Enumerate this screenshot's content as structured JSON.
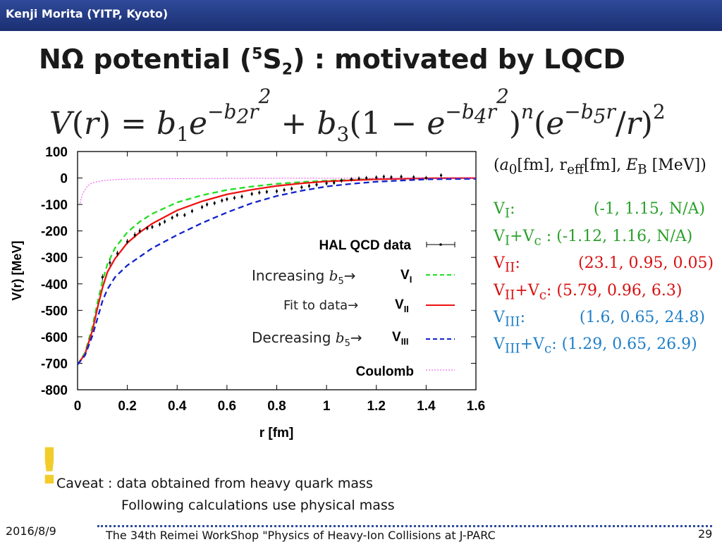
{
  "header": {
    "author": "Kenji Morita (YITP, Kyoto)"
  },
  "slide": {
    "title_pre": "NΩ potential (",
    "title_sup": "5",
    "title_s": "S",
    "title_sub": "2",
    "title_post": ") : motivated by LQCD"
  },
  "formula": {
    "lhs": "V",
    "rhs_text": "V(r) = b1 e^(−b2 r^2) + b3 (1 − e^(−b4 r^2))^n (e^(−b5 r)/r)^2"
  },
  "params": {
    "header": "(a0[fm], reff[fm], EB [MeV])",
    "header_a": "a",
    "header_a_sub": "0",
    "header_mid": "[fm], r",
    "header_r_sub": "eff",
    "header_post": "[fm], ",
    "header_E": "E",
    "header_E_sub": "B",
    "header_end": " [MeV])",
    "rows": [
      {
        "label": "V",
        "sub": "I",
        "suffix": ":",
        "value": "(-1, 1.15, N/A)",
        "color": "#2aa02a"
      },
      {
        "label": "V",
        "sub": "I",
        "suffix": "+V",
        "sub2": "c",
        "suffix2": " :",
        "value": "(-1.12, 1.16, N/A)",
        "color": "#2aa02a"
      },
      {
        "label": "V",
        "sub": "II",
        "suffix": ":",
        "value": "(23.1, 0.95, 0.05)",
        "color": "#d81010"
      },
      {
        "label": "V",
        "sub": "II",
        "suffix": "+V",
        "sub2": "c",
        "suffix2": ":",
        "value": "(5.79, 0.96, 6.3)",
        "color": "#d81010"
      },
      {
        "label": "V",
        "sub": "III",
        "suffix": ":",
        "value": "(1.6, 0.65, 24.8)",
        "color": "#1f7fc8"
      },
      {
        "label": "V",
        "sub": "III",
        "suffix": "+V",
        "sub2": "c",
        "suffix2": ":",
        "value": "(1.29, 0.65, 26.9)",
        "color": "#1f7fc8"
      }
    ]
  },
  "legend": {
    "hal": "HAL QCD data",
    "inc": "Increasing ",
    "b5": "b",
    "b5_sub": "5",
    "arrow": "→",
    "fit": "Fit to data→",
    "dec": "Decreasing ",
    "v1": "V",
    "v1_sub": "I",
    "v2": "V",
    "v2_sub": "II",
    "v3": "V",
    "v3_sub": "III",
    "coulomb": "Coulomb"
  },
  "caveat": {
    "mark": "!",
    "line1": "Caveat : data obtained from heavy quark mass",
    "line2": "Following calculations use physical mass"
  },
  "footer": {
    "date": "2016/8/9",
    "title": "The 34th Reimei WorkShop \"Physics of Heavy-Ion Collisions at J-PARC",
    "page": "29"
  },
  "chart_data": {
    "type": "line",
    "xlabel": "r [fm]",
    "ylabel": "V(r) [MeV]",
    "xlim": [
      0,
      1.6
    ],
    "ylim": [
      -800,
      100
    ],
    "xticks": [
      "0",
      "0.2",
      "0.4",
      "0.6",
      "0.8",
      "1",
      "1.2",
      "1.4",
      "1.6"
    ],
    "yticks": [
      "100",
      "0",
      "-100",
      "-200",
      "-300",
      "-400",
      "-500",
      "-600",
      "-700",
      "-800"
    ],
    "series": [
      {
        "name": "V_I",
        "color": "#22dd22",
        "dash": "8,5",
        "x": [
          0,
          0.03,
          0.06,
          0.08,
          0.1,
          0.12,
          0.15,
          0.2,
          0.25,
          0.3,
          0.4,
          0.5,
          0.6,
          0.7,
          0.8,
          0.9,
          1.0,
          1.2,
          1.4,
          1.6
        ],
        "y": [
          -705,
          -660,
          -560,
          -470,
          -390,
          -325,
          -265,
          -205,
          -165,
          -135,
          -92,
          -65,
          -45,
          -32,
          -22,
          -15,
          -10,
          -4,
          -1,
          0
        ]
      },
      {
        "name": "V_II",
        "color": "#ee1111",
        "dash": "",
        "x": [
          0,
          0.03,
          0.06,
          0.08,
          0.1,
          0.12,
          0.15,
          0.2,
          0.25,
          0.3,
          0.4,
          0.5,
          0.6,
          0.7,
          0.8,
          0.9,
          1.0,
          1.2,
          1.4,
          1.6
        ],
        "y": [
          -705,
          -665,
          -575,
          -490,
          -415,
          -355,
          -305,
          -245,
          -205,
          -172,
          -122,
          -88,
          -62,
          -44,
          -30,
          -20,
          -13,
          -5,
          -1,
          0
        ]
      },
      {
        "name": "V_III",
        "color": "#1122cc",
        "dash": "8,5",
        "x": [
          0,
          0.03,
          0.06,
          0.08,
          0.1,
          0.12,
          0.15,
          0.2,
          0.3,
          0.4,
          0.5,
          0.6,
          0.7,
          0.8,
          0.9,
          1.0,
          1.1,
          1.2,
          1.4,
          1.6
        ],
        "y": [
          -705,
          -670,
          -595,
          -530,
          -465,
          -420,
          -375,
          -330,
          -265,
          -215,
          -170,
          -130,
          -95,
          -68,
          -48,
          -32,
          -22,
          -14,
          -5,
          -3
        ]
      },
      {
        "name": "Coulomb",
        "color": "#ee44ee",
        "dash": "2,2",
        "x": [
          0.01,
          0.02,
          0.04,
          0.06,
          0.1,
          0.15,
          0.2,
          0.3,
          0.5,
          0.8,
          1.2,
          1.6
        ],
        "y": [
          -95,
          -60,
          -30,
          -18,
          -10,
          -6,
          -4,
          -3,
          -2,
          -1,
          -1,
          0
        ]
      }
    ],
    "points": {
      "name": "HAL QCD data",
      "x": [
        0.1,
        0.13,
        0.16,
        0.2,
        0.23,
        0.25,
        0.28,
        0.3,
        0.33,
        0.35,
        0.38,
        0.4,
        0.43,
        0.46,
        0.5,
        0.52,
        0.55,
        0.58,
        0.6,
        0.63,
        0.66,
        0.7,
        0.73,
        0.76,
        0.8,
        0.83,
        0.86,
        0.9,
        0.93,
        0.96,
        1.0,
        1.03,
        1.06,
        1.1,
        1.13,
        1.16,
        1.2,
        1.23,
        1.26,
        1.3,
        1.35,
        1.4,
        1.46
      ],
      "y": [
        -375,
        -320,
        -285,
        -240,
        -215,
        -200,
        -190,
        -185,
        -175,
        -165,
        -150,
        -140,
        -140,
        -125,
        -110,
        -100,
        -95,
        -85,
        -80,
        -75,
        -70,
        -60,
        -55,
        -52,
        -50,
        -45,
        -40,
        -35,
        -30,
        -25,
        -20,
        -18,
        -10,
        -5,
        -2,
        0,
        2,
        5,
        3,
        5,
        3,
        0,
        10
      ],
      "err": [
        12,
        12,
        10,
        10,
        10,
        10,
        8,
        8,
        8,
        8,
        8,
        8,
        8,
        8,
        8,
        8,
        8,
        8,
        8,
        8,
        8,
        8,
        8,
        8,
        8,
        8,
        8,
        8,
        8,
        8,
        8,
        8,
        8,
        8,
        8,
        8,
        8,
        8,
        8,
        8,
        8,
        8,
        8
      ]
    }
  }
}
